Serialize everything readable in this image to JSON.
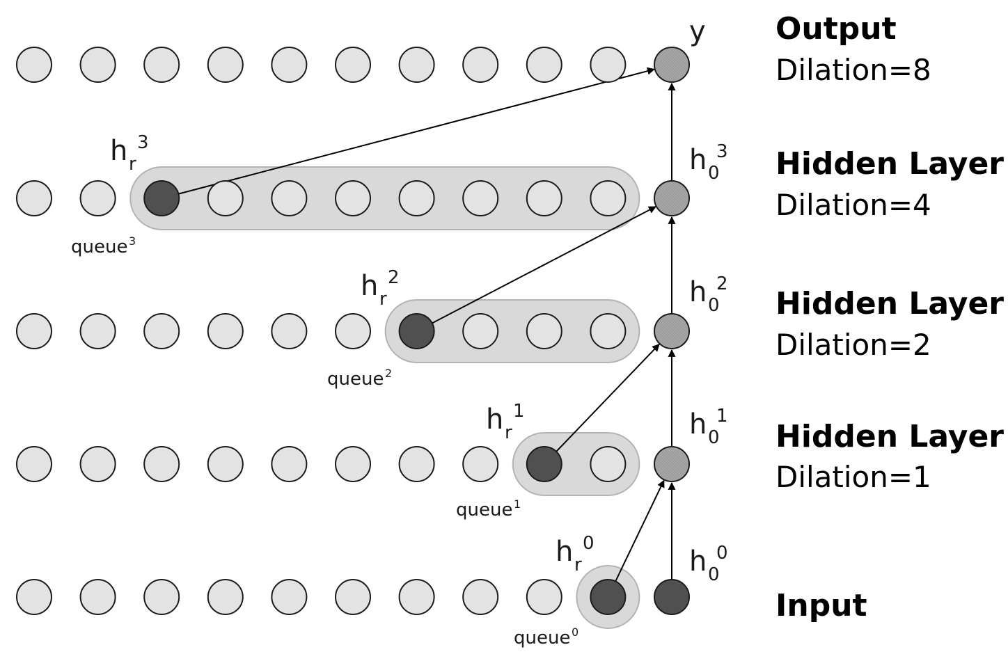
{
  "colors": {
    "node_fill": "#e3e3e3",
    "queue_head_fill": "#505050",
    "output_path_fill": "#a6a6a6",
    "input_fill": "#505050",
    "queue_box": "#d9d9d9"
  },
  "layers": [
    {
      "id": "output",
      "title": "Output",
      "subtitle": "Dilation=8",
      "column_symbol": {
        "main": "y",
        "sub": "",
        "sup": ""
      },
      "queue_head": null,
      "queue_label": null
    },
    {
      "id": "hidden-3",
      "title": "Hidden Layer",
      "subtitle": "Dilation=4",
      "column_symbol": {
        "main": "h",
        "sub": "0",
        "sup": "3"
      },
      "queue_head": {
        "main": "h",
        "sub": "r",
        "sup": "3"
      },
      "queue_label": {
        "text": "queue",
        "sup": "3"
      }
    },
    {
      "id": "hidden-2",
      "title": "Hidden Layer",
      "subtitle": "Dilation=2",
      "column_symbol": {
        "main": "h",
        "sub": "0",
        "sup": "2"
      },
      "queue_head": {
        "main": "h",
        "sub": "r",
        "sup": "2"
      },
      "queue_label": {
        "text": "queue",
        "sup": "2"
      }
    },
    {
      "id": "hidden-1",
      "title": "Hidden Layer",
      "subtitle": "Dilation=1",
      "column_symbol": {
        "main": "h",
        "sub": "0",
        "sup": "1"
      },
      "queue_head": {
        "main": "h",
        "sub": "r",
        "sup": "1"
      },
      "queue_label": {
        "text": "queue",
        "sup": "1"
      }
    },
    {
      "id": "input",
      "title": "Input",
      "subtitle": "",
      "column_symbol": {
        "main": "h",
        "sub": "0",
        "sup": "0"
      },
      "queue_head": {
        "main": "h",
        "sub": "r",
        "sup": "0"
      },
      "queue_label": {
        "text": "queue",
        "sup": "0"
      }
    }
  ]
}
